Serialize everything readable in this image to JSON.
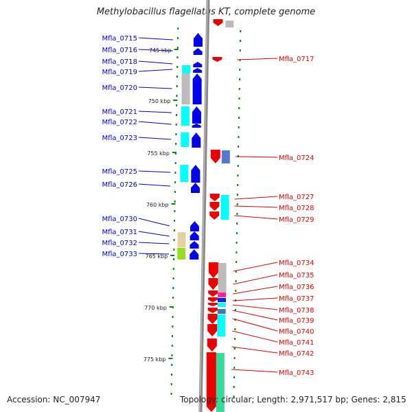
{
  "title": "Methylobacillus flagellatus KT, complete genome",
  "footer": {
    "accession": "Accession: NC_007947",
    "summary": "Topology: circular; Length: 2,971,517 bp; Genes: 2,815"
  },
  "colors": {
    "forward_label": "#0000cc",
    "reverse_label": "#dd0000",
    "backbone": "#888888",
    "tick": "#008800"
  },
  "scale_ticks": [
    "745 kbp",
    "750 kbp",
    "755 kbp",
    "760 kbp",
    "765 kbp",
    "770 kbp",
    "775 kbp"
  ],
  "forward_genes": [
    "Mfla_0715",
    "Mfla_0716",
    "Mfla_0718",
    "Mfla_0719",
    "Mfla_0720",
    "Mfla_0721",
    "Mfla_0722",
    "Mfla_0723",
    "Mfla_0725",
    "Mfla_0726",
    "Mfla_0730",
    "Mfla_0731",
    "Mfla_0732",
    "Mfla_0733"
  ],
  "reverse_genes": [
    "Mfla_0717",
    "Mfla_0724",
    "Mfla_0727",
    "Mfla_0728",
    "Mfla_0729",
    "Mfla_0734",
    "Mfla_0735",
    "Mfla_0736",
    "Mfla_0737",
    "Mfla_0738",
    "Mfla_0739",
    "Mfla_0740",
    "Mfla_0741",
    "Mfla_0742",
    "Mfla_0743"
  ]
}
